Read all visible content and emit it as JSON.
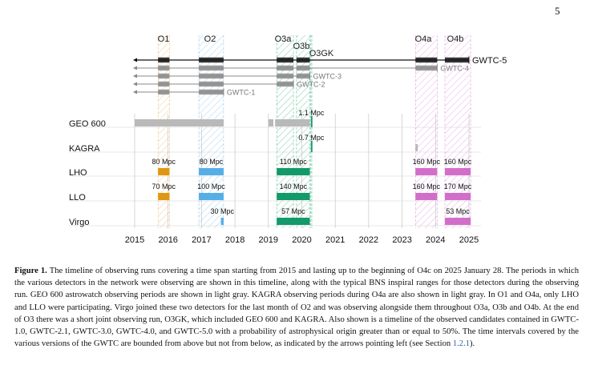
{
  "page_number": "5",
  "chart_data": {
    "type": "timeline",
    "x_axis": {
      "ticks": [
        "2015",
        "2016",
        "2017",
        "2018",
        "2019",
        "2020",
        "2021",
        "2022",
        "2023",
        "2024",
        "2025"
      ],
      "range": [
        2015,
        2025.2
      ]
    },
    "grid": "vertical lines at year ticks",
    "runs": [
      {
        "name": "O1",
        "start": 2015.7,
        "end": 2016.04,
        "color": "#e7a441"
      },
      {
        "name": "O2",
        "start": 2016.92,
        "end": 2017.66,
        "color": "#6bb3e6"
      },
      {
        "name": "O3a",
        "start": 2019.25,
        "end": 2019.75,
        "color": "#2aa873"
      },
      {
        "name": "O3b",
        "start": 2019.84,
        "end": 2020.24,
        "color": "#2aa873"
      },
      {
        "name": "O3GK",
        "start": 2020.27,
        "end": 2020.3,
        "color": "#2aa873"
      },
      {
        "name": "O4a",
        "start": 2023.4,
        "end": 2024.05,
        "color": "#d478cc"
      },
      {
        "name": "O4b",
        "start": 2024.28,
        "end": 2025.05,
        "color": "#d478cc"
      }
    ],
    "catalogs": [
      {
        "name": "GWTC-5",
        "end": 2025.0,
        "color": "#111111",
        "segments": [
          [
            2015.7,
            2016.04
          ],
          [
            2016.92,
            2017.66
          ],
          [
            2019.25,
            2019.75
          ],
          [
            2019.84,
            2020.24
          ],
          [
            2023.4,
            2024.05
          ],
          [
            2024.28,
            2025.0
          ]
        ]
      },
      {
        "name": "GWTC-4",
        "end": 2024.05,
        "color": "#888888",
        "segments": [
          [
            2015.7,
            2016.04
          ],
          [
            2016.92,
            2017.66
          ],
          [
            2019.25,
            2019.75
          ],
          [
            2019.84,
            2020.24
          ],
          [
            2023.4,
            2024.05
          ]
        ]
      },
      {
        "name": "GWTC-3",
        "end": 2020.24,
        "color": "#888888",
        "segments": [
          [
            2015.7,
            2016.04
          ],
          [
            2016.92,
            2017.66
          ],
          [
            2019.25,
            2019.75
          ],
          [
            2019.84,
            2020.24
          ]
        ]
      },
      {
        "name": "GWTC-2",
        "end": 2019.75,
        "color": "#888888",
        "segments": [
          [
            2015.7,
            2016.04
          ],
          [
            2016.92,
            2017.66
          ],
          [
            2019.25,
            2019.75
          ]
        ]
      },
      {
        "name": "GWTC-1",
        "end": 2017.66,
        "color": "#888888",
        "segments": [
          [
            2015.7,
            2016.04
          ],
          [
            2016.92,
            2017.66
          ]
        ]
      }
    ],
    "detectors": [
      {
        "name": "GEO 600",
        "bars": [
          {
            "start": 2015.0,
            "end": 2017.66,
            "color": "#b9b9b9",
            "label": ""
          },
          {
            "start": 2019.0,
            "end": 2019.15,
            "color": "#b9b9b9",
            "label": ""
          },
          {
            "start": 2019.2,
            "end": 2020.24,
            "color": "#b9b9b9",
            "label": ""
          },
          {
            "start": 2020.27,
            "end": 2020.3,
            "color": "#1a9a6e",
            "label": "1.1 Mpc",
            "tall": true
          }
        ]
      },
      {
        "name": "KAGRA",
        "bars": [
          {
            "start": 2023.4,
            "end": 2023.47,
            "color": "#b9b9b9",
            "label": ""
          },
          {
            "start": 2020.27,
            "end": 2020.3,
            "color": "#1a9a6e",
            "label": "0.7 Mpc",
            "tall": true
          }
        ]
      },
      {
        "name": "LHO",
        "bars": [
          {
            "start": 2015.7,
            "end": 2016.04,
            "color": "#e0970f",
            "label": "80 Mpc"
          },
          {
            "start": 2016.92,
            "end": 2017.66,
            "color": "#56aee6",
            "label": "80 Mpc"
          },
          {
            "start": 2019.25,
            "end": 2020.24,
            "color": "#13996a",
            "label": "110 Mpc"
          },
          {
            "start": 2023.4,
            "end": 2024.05,
            "color": "#d26ec9",
            "label": "160 Mpc"
          },
          {
            "start": 2024.28,
            "end": 2025.05,
            "color": "#d26ec9",
            "label": "160 Mpc"
          }
        ]
      },
      {
        "name": "LLO",
        "bars": [
          {
            "start": 2015.7,
            "end": 2016.04,
            "color": "#e0970f",
            "label": "70 Mpc"
          },
          {
            "start": 2016.92,
            "end": 2017.66,
            "color": "#56aee6",
            "label": "100 Mpc"
          },
          {
            "start": 2019.25,
            "end": 2020.24,
            "color": "#13996a",
            "label": "140 Mpc"
          },
          {
            "start": 2023.4,
            "end": 2024.05,
            "color": "#d26ec9",
            "label": "160 Mpc"
          },
          {
            "start": 2024.28,
            "end": 2025.05,
            "color": "#d26ec9",
            "label": "170 Mpc"
          }
        ]
      },
      {
        "name": "Virgo",
        "bars": [
          {
            "start": 2017.58,
            "end": 2017.66,
            "color": "#56aee6",
            "label": "30 Mpc"
          },
          {
            "start": 2019.25,
            "end": 2020.24,
            "color": "#13996a",
            "label": "57 Mpc"
          },
          {
            "start": 2024.28,
            "end": 2025.05,
            "color": "#d26ec9",
            "label": "53 Mpc"
          }
        ]
      }
    ]
  },
  "caption": {
    "label": "Figure 1.",
    "text": "The timeline of observing runs covering a time span starting from 2015 and lasting up to the beginning of O4c on 2025 January 28. The periods in which the various detectors in the network were observing are shown in this timeline, along with the typical BNS inspiral ranges for those detectors during the observing run. GEO 600 astrowatch observing periods are shown in light gray. KAGRA observing periods during O4a are also shown in light gray. In O1 and O4a, only LHO and LLO were participating. Virgo joined these two detectors for the last month of O2 and was observing alongside them throughout O3a, O3b and O4b. At the end of O3 there was a short joint observing run, O3GK, which included GEO 600 and KAGRA. Also shown is a timeline of the observed candidates contained in GWTC-1.0, GWTC-2.1, GWTC-3.0, GWTC-4.0, and GWTC-5.0 with a probability of astrophysical origin greater than or equal to 50%. The time intervals covered by the various versions of the GWTC are bounded from above but not from below, as indicated by the arrows pointing left (see Section",
    "section_ref": "1.2.1",
    "tail": ")."
  }
}
